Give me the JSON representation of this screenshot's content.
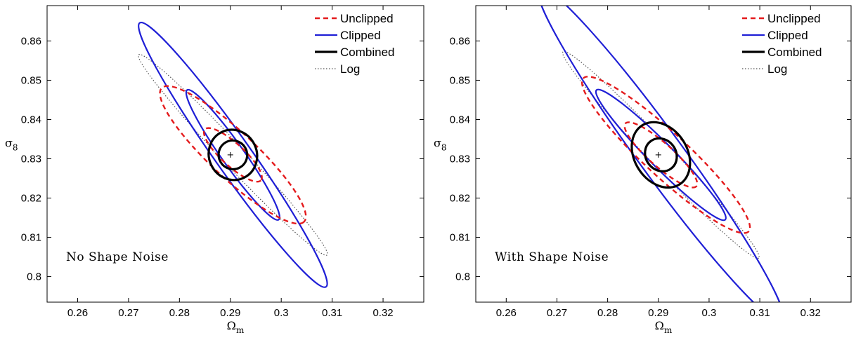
{
  "chart_data": [
    {
      "type": "contour",
      "annotation": "No Shape Noise",
      "xlabel": "Ω",
      "xlabel_sub": "m",
      "ylabel": "σ",
      "ylabel_sub": "8",
      "xlim": [
        0.254,
        0.328
      ],
      "ylim": [
        0.7935,
        0.869
      ],
      "xticks": [
        "0.26",
        "0.27",
        "0.28",
        "0.29",
        "0.3",
        "0.31",
        "0.32"
      ],
      "yticks": [
        "0.8",
        "0.81",
        "0.82",
        "0.83",
        "0.84",
        "0.85",
        "0.86"
      ],
      "grid": false,
      "legend": {
        "position": "top-right",
        "entries": [
          {
            "label": "Unclipped",
            "color": "#e41a1c",
            "style": "dashed"
          },
          {
            "label": "Clipped",
            "color": "#1f1fd6",
            "style": "solid"
          },
          {
            "label": "Combined",
            "color": "#000000",
            "style": "thick"
          },
          {
            "label": "Log",
            "color": "#555555",
            "style": "dotted"
          }
        ]
      },
      "fiducial": {
        "x": 0.29,
        "y": 0.831
      },
      "contours": [
        {
          "series": "Log",
          "color": "#555555",
          "style": "dotted",
          "cx": 0.2905,
          "cy": 0.831,
          "endA": [
            0.272,
            0.8565
          ],
          "endB": [
            0.309,
            0.8055
          ],
          "width": 0.0022
        },
        {
          "series": "Clipped",
          "color": "#1f1fd6",
          "style": "solid",
          "cx": 0.2905,
          "cy": 0.831,
          "endA": [
            0.2722,
            0.8646
          ],
          "endB": [
            0.3088,
            0.7974
          ],
          "width": 0.0035
        },
        {
          "series": "Clipped",
          "color": "#1f1fd6",
          "style": "solid",
          "cx": 0.2905,
          "cy": 0.831,
          "endA": [
            0.2815,
            0.8475
          ],
          "endB": [
            0.2995,
            0.8145
          ],
          "width": 0.0022
        },
        {
          "series": "Unclipped",
          "color": "#e41a1c",
          "style": "dashed",
          "cx": 0.2905,
          "cy": 0.831,
          "endA": [
            0.2765,
            0.848
          ],
          "endB": [
            0.3045,
            0.814
          ],
          "width": 0.0045
        },
        {
          "series": "Unclipped",
          "color": "#e41a1c",
          "style": "dashed",
          "cx": 0.2905,
          "cy": 0.831,
          "endA": [
            0.285,
            0.8375
          ],
          "endB": [
            0.296,
            0.8245
          ],
          "width": 0.0022
        },
        {
          "series": "Combined",
          "color": "#000000",
          "style": "thick",
          "cx": 0.2905,
          "cy": 0.831,
          "endA": [
            0.2883,
            0.8368
          ],
          "endB": [
            0.2927,
            0.8252
          ],
          "width": 0.0047
        },
        {
          "series": "Combined",
          "color": "#000000",
          "style": "thick",
          "cx": 0.2905,
          "cy": 0.831,
          "endA": [
            0.2891,
            0.8342
          ],
          "endB": [
            0.2919,
            0.8278
          ],
          "width": 0.0028
        }
      ]
    },
    {
      "type": "contour",
      "annotation": "With Shape Noise",
      "xlabel": "Ω",
      "xlabel_sub": "m",
      "ylabel": "σ",
      "ylabel_sub": "8",
      "xlim": [
        0.254,
        0.328
      ],
      "ylim": [
        0.7935,
        0.869
      ],
      "xticks": [
        "0.26",
        "0.27",
        "0.28",
        "0.29",
        "0.3",
        "0.31",
        "0.32"
      ],
      "yticks": [
        "0.8",
        "0.81",
        "0.82",
        "0.83",
        "0.84",
        "0.85",
        "0.86"
      ],
      "grid": false,
      "legend": {
        "position": "top-right",
        "entries": [
          {
            "label": "Unclipped",
            "color": "#e41a1c",
            "style": "dashed"
          },
          {
            "label": "Clipped",
            "color": "#1f1fd6",
            "style": "solid"
          },
          {
            "label": "Combined",
            "color": "#000000",
            "style": "thick"
          },
          {
            "label": "Log",
            "color": "#555555",
            "style": "dotted"
          }
        ]
      },
      "fiducial": {
        "x": 0.29,
        "y": 0.831
      },
      "contours": [
        {
          "series": "Log",
          "color": "#555555",
          "style": "dotted",
          "cx": 0.2905,
          "cy": 0.831,
          "endA": [
            0.2712,
            0.857
          ],
          "endB": [
            0.3098,
            0.8045
          ],
          "width": 0.0023
        },
        {
          "series": "Clipped",
          "color": "#1f1fd6",
          "style": "solid",
          "cx": 0.2905,
          "cy": 0.831,
          "endA": [
            0.2665,
            0.8735
          ],
          "endB": [
            0.3145,
            0.7885
          ],
          "width": 0.0044
        },
        {
          "series": "Clipped",
          "color": "#1f1fd6",
          "style": "solid",
          "cx": 0.2905,
          "cy": 0.831,
          "endA": [
            0.2778,
            0.8475
          ],
          "endB": [
            0.3032,
            0.8145
          ],
          "width": 0.0024
        },
        {
          "series": "Unclipped",
          "color": "#e41a1c",
          "style": "dashed",
          "cx": 0.2915,
          "cy": 0.831,
          "endA": [
            0.2752,
            0.8505
          ],
          "endB": [
            0.3078,
            0.8115
          ],
          "width": 0.0043
        },
        {
          "series": "Unclipped",
          "color": "#e41a1c",
          "style": "dashed",
          "cx": 0.2905,
          "cy": 0.831,
          "endA": [
            0.2835,
            0.839
          ],
          "endB": [
            0.2975,
            0.823
          ],
          "width": 0.0023
        },
        {
          "series": "Combined",
          "color": "#000000",
          "style": "thick",
          "cx": 0.2905,
          "cy": 0.831,
          "endA": [
            0.2868,
            0.8385
          ],
          "endB": [
            0.2942,
            0.8235
          ],
          "width": 0.0052
        },
        {
          "series": "Combined",
          "color": "#000000",
          "style": "thick",
          "cx": 0.2905,
          "cy": 0.831,
          "endA": [
            0.2885,
            0.8345
          ],
          "endB": [
            0.2925,
            0.8275
          ],
          "width": 0.003
        }
      ]
    }
  ]
}
